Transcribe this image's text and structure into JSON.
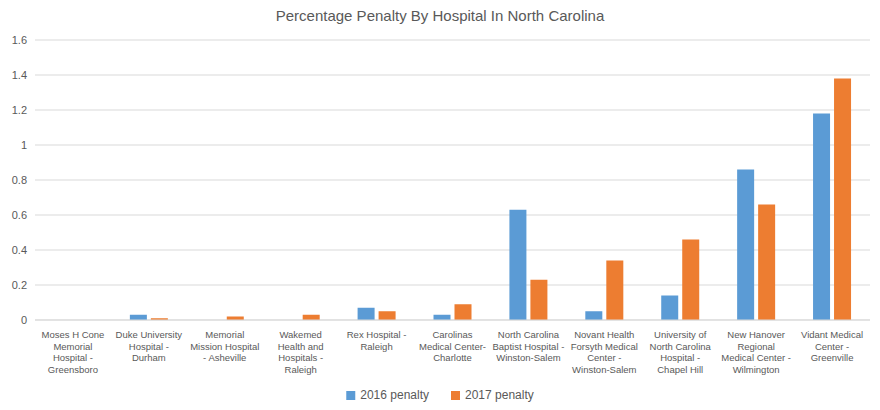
{
  "chart_data": {
    "type": "bar",
    "title": "Percentage Penalty By Hospital In North Carolina",
    "categories": [
      "Moses H Cone Memorial Hospital - Greensboro",
      "Duke University Hospital - Durham",
      "Memorial Mission Hospital - Asheville",
      "Wakemed Health and Hospitals - Raleigh",
      "Rex Hospital - Raleigh",
      "Carolinas Medical Center- Charlotte",
      "North Carolina Baptist Hospital - Winston-Salem",
      "Novant Health Forsyth Medical Center - Winston-Salem",
      "University of North Carolina Hospital - Chapel Hill",
      "New Hanover Regional Medical Center - Wilmington",
      "Vidant Medical Center - Greenville"
    ],
    "series": [
      {
        "name": "2016 penalty",
        "color": "#5b9bd5",
        "values": [
          0,
          0.03,
          0,
          0,
          0.07,
          0.03,
          0.63,
          0.05,
          0.14,
          0.86,
          1.18
        ]
      },
      {
        "name": "2017 penalty",
        "color": "#ed7d31",
        "values": [
          0,
          0.01,
          0.02,
          0.03,
          0.05,
          0.09,
          0.23,
          0.34,
          0.46,
          0.66,
          1.38
        ]
      }
    ],
    "ylim": [
      0,
      1.6
    ],
    "yticks": [
      0,
      0.2,
      0.4,
      0.6,
      0.8,
      1,
      1.2,
      1.4,
      1.6
    ],
    "grid": true,
    "legend": "bottom"
  }
}
